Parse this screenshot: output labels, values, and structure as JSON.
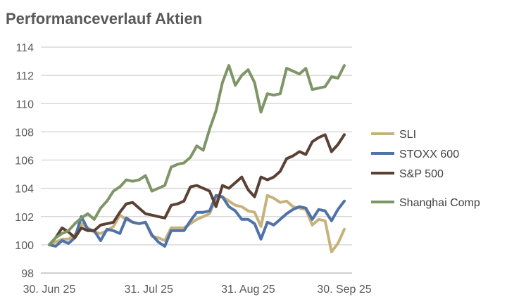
{
  "chart_data": {
    "type": "line",
    "title": "Performanceverlauf Aktien",
    "xlabel": "",
    "ylabel": "",
    "ylim": [
      98,
      114
    ],
    "yticks": [
      98,
      100,
      102,
      104,
      106,
      108,
      110,
      112,
      114
    ],
    "xlim_days": [
      0,
      92
    ],
    "xticks": [
      {
        "day": 0,
        "label": "30. Jun 25"
      },
      {
        "day": 31,
        "label": "31. Jul 25"
      },
      {
        "day": 62,
        "label": "31. Aug 25"
      },
      {
        "day": 92,
        "label": "30. Sep 25"
      }
    ],
    "x_step_days": 2,
    "grid": true,
    "legend_position": "right",
    "series": [
      {
        "name": "SLI",
        "color": "#C8B27C",
        "values": [
          100,
          100.2,
          100.4,
          100.4,
          100.7,
          101.5,
          101.2,
          100.9,
          100.8,
          101,
          101.3,
          102.1,
          101.8,
          101.6,
          101.5,
          101.6,
          100.6,
          100.5,
          100.3,
          101.2,
          101.2,
          101.2,
          101.5,
          101.8,
          102,
          102.2,
          103.3,
          103.4,
          103.1,
          102.8,
          102.7,
          102.4,
          102.3,
          101.3,
          103.5,
          103.3,
          103,
          103.1,
          102.7,
          102.6,
          102.5,
          101.4,
          101.8,
          101.7,
          99.5,
          100.1,
          101.1
        ]
      },
      {
        "name": "STOXX 600",
        "color": "#4F72A8",
        "values": [
          100,
          99.9,
          100.3,
          100.1,
          100.5,
          102,
          101.1,
          101,
          100.3,
          101.1,
          101,
          100.8,
          101.9,
          101.6,
          101.5,
          101.6,
          100.7,
          100.2,
          99.9,
          101,
          101,
          101,
          101.7,
          102.3,
          102.3,
          102.4,
          103.5,
          103.4,
          102.7,
          102.4,
          101.8,
          101.8,
          101.5,
          100.4,
          101.6,
          101.4,
          101.8,
          102.2,
          102.5,
          102.7,
          102.6,
          101.8,
          102.5,
          102.4,
          101.7,
          102.5,
          103.1
        ]
      },
      {
        "name": "S&P 500",
        "color": "#5B4034",
        "values": [
          100,
          100.5,
          101.2,
          100.9,
          100.5,
          101.2,
          101,
          101,
          101.4,
          101.5,
          101.6,
          102.3,
          102.9,
          103,
          102.6,
          102.2,
          102.1,
          102,
          101.9,
          102.8,
          102.9,
          103.1,
          104.1,
          104.2,
          104,
          103.8,
          102.7,
          104.2,
          104,
          104.4,
          104.8,
          103.9,
          103.4,
          104.8,
          104.6,
          104.8,
          105.2,
          106.1,
          106.3,
          106.6,
          106.4,
          107.3,
          107.6,
          107.8,
          106.6,
          107.1,
          107.8
        ]
      },
      {
        "name": "Shanghai Comp",
        "color": "#7E9566",
        "values": [
          100,
          100.5,
          100.8,
          101,
          101.5,
          101.9,
          102.2,
          101.8,
          102.6,
          103.1,
          103.8,
          104.1,
          104.6,
          104.5,
          104.6,
          104.9,
          103.8,
          104,
          104.2,
          105.5,
          105.7,
          105.8,
          106.2,
          107,
          106.7,
          108.2,
          109.5,
          111.5,
          112.7,
          111.3,
          112,
          112.4,
          111.5,
          109.4,
          110.7,
          110.6,
          110.7,
          112.5,
          112.3,
          112.1,
          112.5,
          111,
          111.1,
          111.2,
          111.9,
          111.8,
          112.7
        ]
      }
    ]
  }
}
